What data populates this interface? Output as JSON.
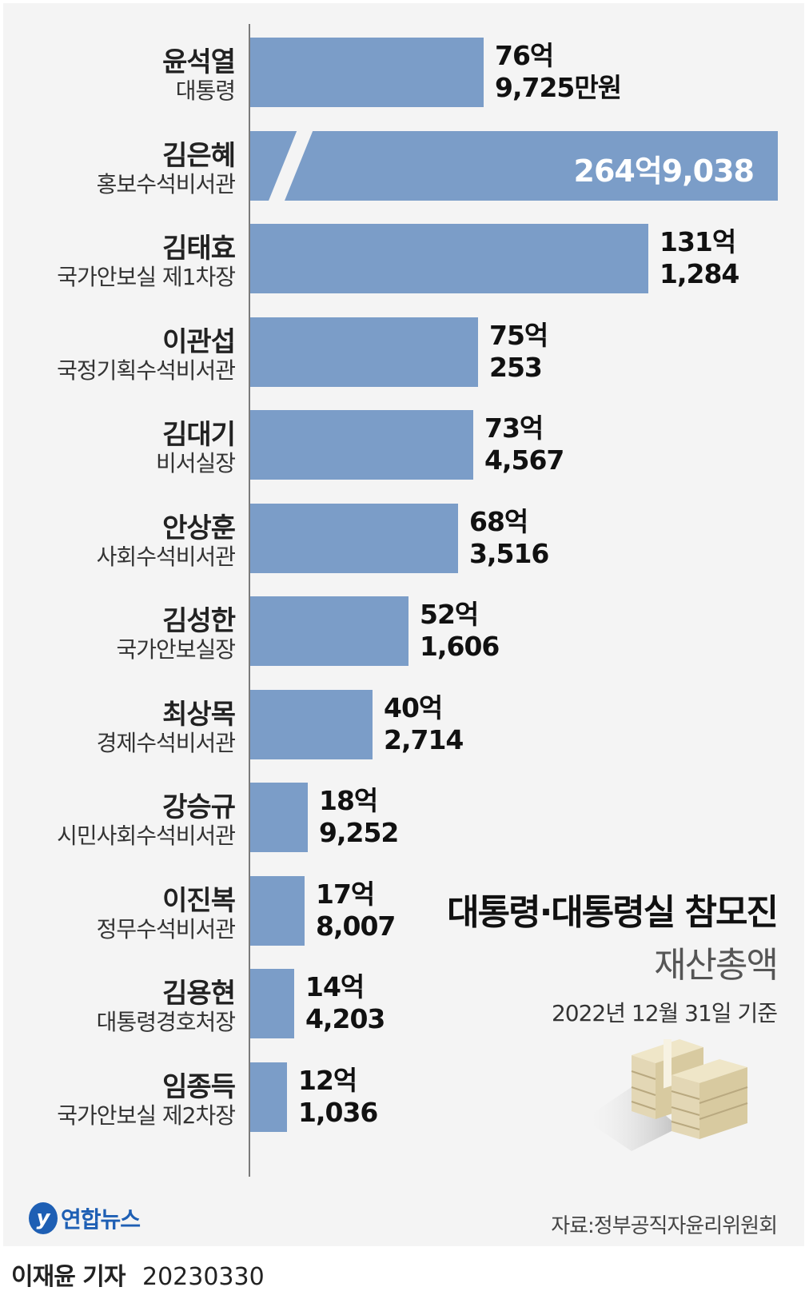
{
  "chart_data": {
    "type": "bar",
    "orientation": "horizontal",
    "title": "대통령·대통령실 참모진",
    "subtitle": "재산총액",
    "note": "2022년 12월 31일 기준",
    "source": "자료:정부공직자윤리위원회",
    "unit": "만원",
    "broken_axis_category": "김은혜",
    "rows": [
      {
        "name": "윤석열",
        "title": "대통령",
        "value": 769725,
        "label_line1": "76억",
        "label_line2": "9,725만원"
      },
      {
        "name": "김은혜",
        "title": "홍보수석비서관",
        "value": 2649038,
        "label_line1": "264억9,038",
        "label_line2": ""
      },
      {
        "name": "김태효",
        "title": "국가안보실 제1차장",
        "value": 1311284,
        "label_line1": "131억",
        "label_line2": "1,284"
      },
      {
        "name": "이관섭",
        "title": "국정기획수석비서관",
        "value": 750253,
        "label_line1": "75억",
        "label_line2": "253"
      },
      {
        "name": "김대기",
        "title": "비서실장",
        "value": 734567,
        "label_line1": "73억",
        "label_line2": "4,567"
      },
      {
        "name": "안상훈",
        "title": "사회수석비서관",
        "value": 683516,
        "label_line1": "68억",
        "label_line2": "3,516"
      },
      {
        "name": "김성한",
        "title": "국가안보실장",
        "value": 521606,
        "label_line1": "52억",
        "label_line2": "1,606"
      },
      {
        "name": "최상목",
        "title": "경제수석비서관",
        "value": 402714,
        "label_line1": "40억",
        "label_line2": "2,714"
      },
      {
        "name": "강승규",
        "title": "시민사회수석비서관",
        "value": 189252,
        "label_line1": "18억",
        "label_line2": "9,252"
      },
      {
        "name": "이진복",
        "title": "정무수석비서관",
        "value": 178007,
        "label_line1": "17억",
        "label_line2": "8,007"
      },
      {
        "name": "김용현",
        "title": "대통령경호처장",
        "value": 144203,
        "label_line1": "14억",
        "label_line2": "4,203"
      },
      {
        "name": "임종득",
        "title": "국가안보실 제2차장",
        "value": 121036,
        "label_line1": "12억",
        "label_line2": "1,036"
      }
    ]
  },
  "branding": {
    "logo_mark": "y",
    "logo_text": "연합뉴스",
    "reporter": "이재윤 기자",
    "date": "20230330"
  },
  "colors": {
    "bar": "#7b9dc8",
    "background": "#f4f4f4",
    "logo": "#1e5fb4"
  },
  "icons": {
    "illustration": "money-stack-icon"
  }
}
